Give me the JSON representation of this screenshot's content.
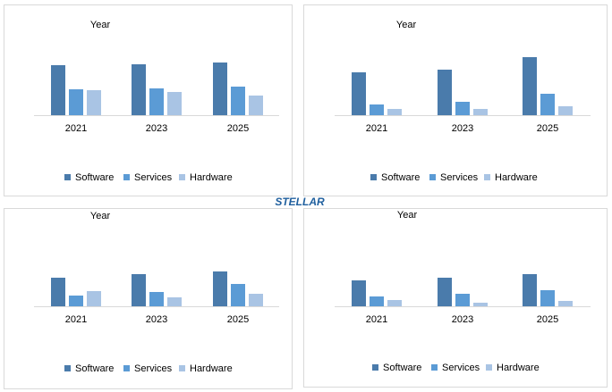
{
  "chart_data": [
    {
      "type": "bar",
      "title": "Year",
      "categories": [
        "2021",
        "2023",
        "2025"
      ],
      "series": [
        {
          "name": "Software",
          "color": "#4a7bab",
          "values": [
            56,
            57,
            59
          ]
        },
        {
          "name": "Services",
          "color": "#5b9bd5",
          "values": [
            29,
            30,
            32
          ]
        },
        {
          "name": "Hardware",
          "color": "#a9c4e4",
          "values": [
            28,
            26,
            22
          ]
        }
      ]
    },
    {
      "type": "bar",
      "title": "Year",
      "categories": [
        "2021",
        "2023",
        "2025"
      ],
      "series": [
        {
          "name": "Software",
          "color": "#4a7bab",
          "values": [
            48,
            51,
            65
          ]
        },
        {
          "name": "Services",
          "color": "#5b9bd5",
          "values": [
            12,
            15,
            24
          ]
        },
        {
          "name": "Hardware",
          "color": "#a9c4e4",
          "values": [
            7,
            7,
            10
          ]
        }
      ]
    },
    {
      "type": "bar",
      "title": "Year",
      "categories": [
        "2021",
        "2023",
        "2025"
      ],
      "series": [
        {
          "name": "Software",
          "color": "#4a7bab",
          "values": [
            32,
            36,
            39
          ]
        },
        {
          "name": "Services",
          "color": "#5b9bd5",
          "values": [
            12,
            16,
            25
          ]
        },
        {
          "name": "Hardware",
          "color": "#a9c4e4",
          "values": [
            17,
            10,
            14
          ]
        }
      ]
    },
    {
      "type": "bar",
      "title": "Year",
      "categories": [
        "2021",
        "2023",
        "2025"
      ],
      "series": [
        {
          "name": "Software",
          "color": "#4a7bab",
          "values": [
            29,
            32,
            36
          ]
        },
        {
          "name": "Services",
          "color": "#5b9bd5",
          "values": [
            11,
            14,
            18
          ]
        },
        {
          "name": "Hardware",
          "color": "#a9c4e4",
          "values": [
            7,
            4,
            6
          ]
        }
      ]
    }
  ],
  "logo": {
    "text": "STELLAR"
  }
}
